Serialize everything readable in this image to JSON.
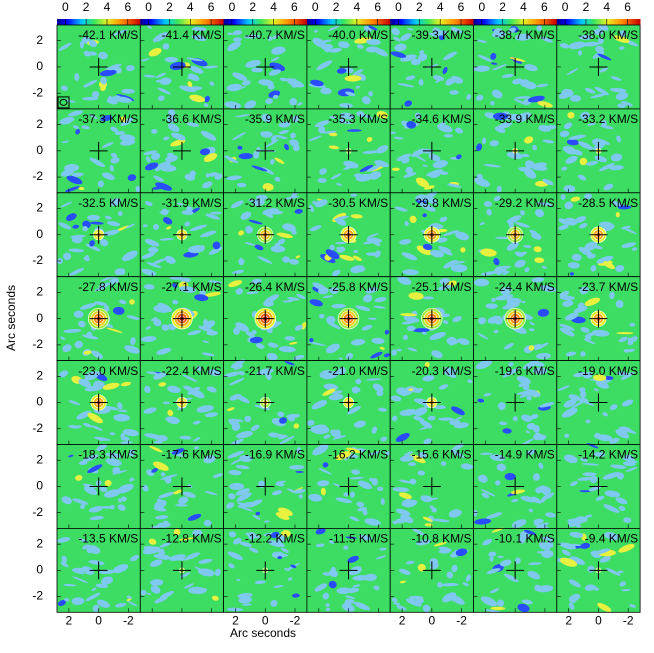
{
  "chart_data": {
    "type": "channel-map",
    "xlabel": "Arc seconds",
    "ylabel": "Arc seconds",
    "xlim": [
      2.8,
      -2.8
    ],
    "ylim": [
      -3.2,
      3.2
    ],
    "xticks": [
      2,
      0,
      -2
    ],
    "yticks": [
      2,
      0,
      -2
    ],
    "clim": [
      -0.8,
      7.2
    ],
    "colorbar_ticks": [
      0,
      2,
      4,
      6
    ],
    "panels": [
      {
        "label": "-42.1 KM/S",
        "peak": 3
      },
      {
        "label": "-41.4 KM/S",
        "peak": 3
      },
      {
        "label": "-40.7 KM/S",
        "peak": 3
      },
      {
        "label": "-40.0 KM/S",
        "peak": 3
      },
      {
        "label": "-39.3 KM/S",
        "peak": 3
      },
      {
        "label": "-38.7 KM/S",
        "peak": 3
      },
      {
        "label": "-38.0 KM/S",
        "peak": 3
      },
      {
        "label": "-37.3 KM/S",
        "peak": 3
      },
      {
        "label": "-36.6 KM/S",
        "peak": 3
      },
      {
        "label": "-35.9 KM/S",
        "peak": 3
      },
      {
        "label": "-35.3 KM/S",
        "peak": 3.5
      },
      {
        "label": "-34.6 KM/S",
        "peak": 3
      },
      {
        "label": "-33.9 KM/S",
        "peak": 4
      },
      {
        "label": "-33.2 KM/S",
        "peak": 4
      },
      {
        "label": "-32.5 KM/S",
        "peak": 5
      },
      {
        "label": "-31.9 KM/S",
        "peak": 5
      },
      {
        "label": "-31.2 KM/S",
        "peak": 5.5
      },
      {
        "label": "-30.5 KM/S",
        "peak": 6
      },
      {
        "label": "-29.8 KM/S",
        "peak": 6
      },
      {
        "label": "-29.2 KM/S",
        "peak": 5.5
      },
      {
        "label": "-28.5 KM/S",
        "peak": 6
      },
      {
        "label": "-27.8 KM/S",
        "peak": 6.5
      },
      {
        "label": "-27.1 KM/S",
        "peak": 7
      },
      {
        "label": "-26.4 KM/S",
        "peak": 7
      },
      {
        "label": "-25.8 KM/S",
        "peak": 6.5
      },
      {
        "label": "-25.1 KM/S",
        "peak": 6.5
      },
      {
        "label": "-24.4 KM/S",
        "peak": 6.5
      },
      {
        "label": "-23.7 KM/S",
        "peak": 6
      },
      {
        "label": "-23.0 KM/S",
        "peak": 6
      },
      {
        "label": "-22.4 KM/S",
        "peak": 5
      },
      {
        "label": "-21.7 KM/S",
        "peak": 4.5
      },
      {
        "label": "-21.0 KM/S",
        "peak": 5
      },
      {
        "label": "-20.3 KM/S",
        "peak": 5
      },
      {
        "label": "-19.6 KM/S",
        "peak": 3
      },
      {
        "label": "-19.0 KM/S",
        "peak": 3
      },
      {
        "label": "-18.3 KM/S",
        "peak": 3
      },
      {
        "label": "-17.6 KM/S",
        "peak": 3
      },
      {
        "label": "-16.9 KM/S",
        "peak": 3
      },
      {
        "label": "-16.2 KM/S",
        "peak": 3
      },
      {
        "label": "-15.6 KM/S",
        "peak": 3
      },
      {
        "label": "-14.9 KM/S",
        "peak": 3
      },
      {
        "label": "-14.2 KM/S",
        "peak": 3
      },
      {
        "label": "-13.5 KM/S",
        "peak": 3
      },
      {
        "label": "-12.8 KM/S",
        "peak": 3.5
      },
      {
        "label": "-12.2 KM/S",
        "peak": 3.5
      },
      {
        "label": "-11.5 KM/S",
        "peak": 3
      },
      {
        "label": "-10.8 KM/S",
        "peak": 3
      },
      {
        "label": "-10.1 KM/S",
        "peak": 3
      },
      {
        "label": "-9.4 KM/S",
        "peak": 3.5
      }
    ]
  }
}
